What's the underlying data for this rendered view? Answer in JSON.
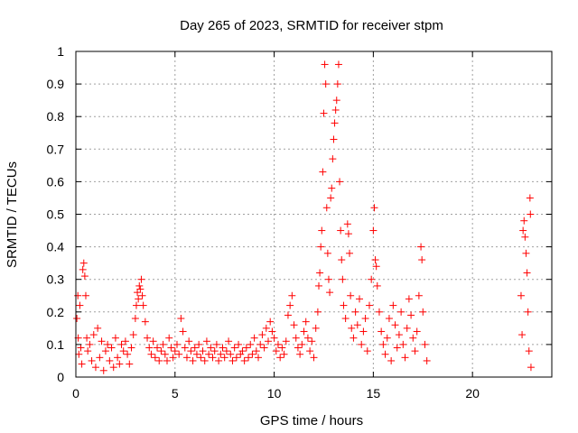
{
  "chart_data": {
    "type": "scatter",
    "title": "Day 265 of 2023, SRMTID for receiver stpm",
    "xlabel": "GPS time / hours",
    "ylabel": "SRMTID / TECUs",
    "xlim": [
      0,
      24
    ],
    "ylim": [
      0,
      1
    ],
    "xticks": [
      0,
      5,
      10,
      15,
      20
    ],
    "xtick_labels": [
      "0",
      "5",
      "10",
      "15",
      "20"
    ],
    "yticks": [
      0,
      0.1,
      0.2,
      0.3,
      0.4,
      0.5,
      0.6,
      0.7,
      0.8,
      0.9,
      1
    ],
    "ytick_labels": [
      "0",
      "0.1",
      "0.2",
      "0.3",
      "0.4",
      "0.5",
      "0.6",
      "0.7",
      "0.8",
      "0.9",
      "1"
    ],
    "grid": true,
    "marker": "+",
    "marker_color": "#ff0000",
    "series": [
      {
        "name": "SRMTID",
        "points": [
          [
            0.05,
            0.18
          ],
          [
            0.1,
            0.25
          ],
          [
            0.12,
            0.12
          ],
          [
            0.15,
            0.07
          ],
          [
            0.2,
            0.22
          ],
          [
            0.25,
            0.09
          ],
          [
            0.3,
            0.04
          ],
          [
            0.35,
            0.33
          ],
          [
            0.4,
            0.35
          ],
          [
            0.45,
            0.31
          ],
          [
            0.5,
            0.25
          ],
          [
            0.55,
            0.12
          ],
          [
            0.6,
            0.08
          ],
          [
            0.7,
            0.1
          ],
          [
            0.8,
            0.05
          ],
          [
            0.9,
            0.13
          ],
          [
            1.0,
            0.03
          ],
          [
            1.1,
            0.15
          ],
          [
            1.2,
            0.06
          ],
          [
            1.3,
            0.11
          ],
          [
            1.4,
            0.02
          ],
          [
            1.5,
            0.08
          ],
          [
            1.6,
            0.1
          ],
          [
            1.7,
            0.05
          ],
          [
            1.8,
            0.09
          ],
          [
            1.9,
            0.03
          ],
          [
            2.0,
            0.12
          ],
          [
            2.1,
            0.06
          ],
          [
            2.2,
            0.04
          ],
          [
            2.3,
            0.1
          ],
          [
            2.4,
            0.08
          ],
          [
            2.5,
            0.11
          ],
          [
            2.6,
            0.07
          ],
          [
            2.7,
            0.04
          ],
          [
            2.8,
            0.09
          ],
          [
            2.9,
            0.13
          ],
          [
            3.0,
            0.18
          ],
          [
            3.05,
            0.22
          ],
          [
            3.1,
            0.26
          ],
          [
            3.15,
            0.24
          ],
          [
            3.2,
            0.28
          ],
          [
            3.25,
            0.27
          ],
          [
            3.3,
            0.3
          ],
          [
            3.35,
            0.25
          ],
          [
            3.4,
            0.22
          ],
          [
            3.5,
            0.17
          ],
          [
            3.6,
            0.12
          ],
          [
            3.7,
            0.09
          ],
          [
            3.8,
            0.07
          ],
          [
            3.9,
            0.11
          ],
          [
            4.0,
            0.06
          ],
          [
            4.1,
            0.09
          ],
          [
            4.2,
            0.05
          ],
          [
            4.3,
            0.08
          ],
          [
            4.4,
            0.1
          ],
          [
            4.5,
            0.07
          ],
          [
            4.6,
            0.05
          ],
          [
            4.7,
            0.12
          ],
          [
            4.8,
            0.09
          ],
          [
            4.9,
            0.06
          ],
          [
            5.0,
            0.08
          ],
          [
            5.1,
            0.1
          ],
          [
            5.2,
            0.07
          ],
          [
            5.3,
            0.18
          ],
          [
            5.4,
            0.14
          ],
          [
            5.5,
            0.09
          ],
          [
            5.6,
            0.06
          ],
          [
            5.7,
            0.11
          ],
          [
            5.8,
            0.08
          ],
          [
            5.9,
            0.05
          ],
          [
            6.0,
            0.09
          ],
          [
            6.1,
            0.07
          ],
          [
            6.2,
            0.1
          ],
          [
            6.3,
            0.06
          ],
          [
            6.4,
            0.08
          ],
          [
            6.5,
            0.05
          ],
          [
            6.6,
            0.11
          ],
          [
            6.7,
            0.07
          ],
          [
            6.8,
            0.09
          ],
          [
            6.9,
            0.06
          ],
          [
            7.0,
            0.08
          ],
          [
            7.1,
            0.1
          ],
          [
            7.2,
            0.05
          ],
          [
            7.3,
            0.07
          ],
          [
            7.4,
            0.09
          ],
          [
            7.5,
            0.06
          ],
          [
            7.6,
            0.08
          ],
          [
            7.7,
            0.11
          ],
          [
            7.8,
            0.07
          ],
          [
            7.9,
            0.05
          ],
          [
            8.0,
            0.09
          ],
          [
            8.1,
            0.06
          ],
          [
            8.2,
            0.1
          ],
          [
            8.3,
            0.07
          ],
          [
            8.4,
            0.08
          ],
          [
            8.5,
            0.05
          ],
          [
            8.6,
            0.09
          ],
          [
            8.7,
            0.06
          ],
          [
            8.8,
            0.1
          ],
          [
            8.9,
            0.07
          ],
          [
            9.0,
            0.12
          ],
          [
            9.1,
            0.08
          ],
          [
            9.2,
            0.06
          ],
          [
            9.3,
            0.1
          ],
          [
            9.4,
            0.13
          ],
          [
            9.5,
            0.09
          ],
          [
            9.6,
            0.15
          ],
          [
            9.7,
            0.11
          ],
          [
            9.8,
            0.17
          ],
          [
            9.9,
            0.14
          ],
          [
            10.0,
            0.12
          ],
          [
            10.1,
            0.08
          ],
          [
            10.2,
            0.1
          ],
          [
            10.3,
            0.06
          ],
          [
            10.4,
            0.09
          ],
          [
            10.5,
            0.07
          ],
          [
            10.6,
            0.11
          ],
          [
            10.7,
            0.19
          ],
          [
            10.8,
            0.22
          ],
          [
            10.9,
            0.25
          ],
          [
            11.0,
            0.16
          ],
          [
            11.1,
            0.12
          ],
          [
            11.2,
            0.09
          ],
          [
            11.3,
            0.07
          ],
          [
            11.4,
            0.1
          ],
          [
            11.5,
            0.14
          ],
          [
            11.6,
            0.17
          ],
          [
            11.7,
            0.12
          ],
          [
            11.8,
            0.08
          ],
          [
            11.9,
            0.11
          ],
          [
            12.0,
            0.06
          ],
          [
            12.1,
            0.15
          ],
          [
            12.2,
            0.2
          ],
          [
            12.25,
            0.28
          ],
          [
            12.3,
            0.32
          ],
          [
            12.35,
            0.4
          ],
          [
            12.4,
            0.45
          ],
          [
            12.45,
            0.63
          ],
          [
            12.5,
            0.81
          ],
          [
            12.55,
            0.96
          ],
          [
            12.6,
            0.9
          ],
          [
            12.65,
            0.52
          ],
          [
            12.7,
            0.38
          ],
          [
            12.75,
            0.3
          ],
          [
            12.8,
            0.26
          ],
          [
            12.85,
            0.55
          ],
          [
            12.9,
            0.58
          ],
          [
            12.95,
            0.67
          ],
          [
            13.0,
            0.73
          ],
          [
            13.05,
            0.78
          ],
          [
            13.1,
            0.82
          ],
          [
            13.15,
            0.85
          ],
          [
            13.2,
            0.9
          ],
          [
            13.25,
            0.96
          ],
          [
            13.3,
            0.6
          ],
          [
            13.35,
            0.45
          ],
          [
            13.4,
            0.36
          ],
          [
            13.45,
            0.3
          ],
          [
            13.5,
            0.22
          ],
          [
            13.6,
            0.18
          ],
          [
            13.7,
            0.47
          ],
          [
            13.75,
            0.44
          ],
          [
            13.8,
            0.38
          ],
          [
            13.85,
            0.25
          ],
          [
            13.9,
            0.15
          ],
          [
            14.0,
            0.12
          ],
          [
            14.1,
            0.2
          ],
          [
            14.2,
            0.16
          ],
          [
            14.3,
            0.24
          ],
          [
            14.4,
            0.1
          ],
          [
            14.5,
            0.14
          ],
          [
            14.6,
            0.18
          ],
          [
            14.7,
            0.08
          ],
          [
            14.8,
            0.22
          ],
          [
            14.9,
            0.3
          ],
          [
            15.0,
            0.45
          ],
          [
            15.05,
            0.52
          ],
          [
            15.1,
            0.36
          ],
          [
            15.15,
            0.34
          ],
          [
            15.2,
            0.28
          ],
          [
            15.3,
            0.2
          ],
          [
            15.4,
            0.14
          ],
          [
            15.5,
            0.1
          ],
          [
            15.6,
            0.07
          ],
          [
            15.7,
            0.12
          ],
          [
            15.8,
            0.18
          ],
          [
            15.9,
            0.05
          ],
          [
            16.0,
            0.22
          ],
          [
            16.1,
            0.16
          ],
          [
            16.2,
            0.09
          ],
          [
            16.3,
            0.13
          ],
          [
            16.4,
            0.2
          ],
          [
            16.5,
            0.1
          ],
          [
            16.6,
            0.06
          ],
          [
            16.7,
            0.15
          ],
          [
            16.8,
            0.24
          ],
          [
            16.9,
            0.19
          ],
          [
            17.0,
            0.12
          ],
          [
            17.1,
            0.08
          ],
          [
            17.2,
            0.14
          ],
          [
            17.3,
            0.25
          ],
          [
            17.4,
            0.4
          ],
          [
            17.45,
            0.36
          ],
          [
            17.5,
            0.2
          ],
          [
            17.6,
            0.1
          ],
          [
            17.7,
            0.05
          ],
          [
            22.45,
            0.25
          ],
          [
            22.5,
            0.13
          ],
          [
            22.55,
            0.45
          ],
          [
            22.6,
            0.48
          ],
          [
            22.65,
            0.43
          ],
          [
            22.7,
            0.38
          ],
          [
            22.75,
            0.32
          ],
          [
            22.8,
            0.2
          ],
          [
            22.85,
            0.08
          ],
          [
            22.9,
            0.55
          ],
          [
            22.92,
            0.5
          ],
          [
            22.95,
            0.03
          ]
        ]
      }
    ]
  }
}
